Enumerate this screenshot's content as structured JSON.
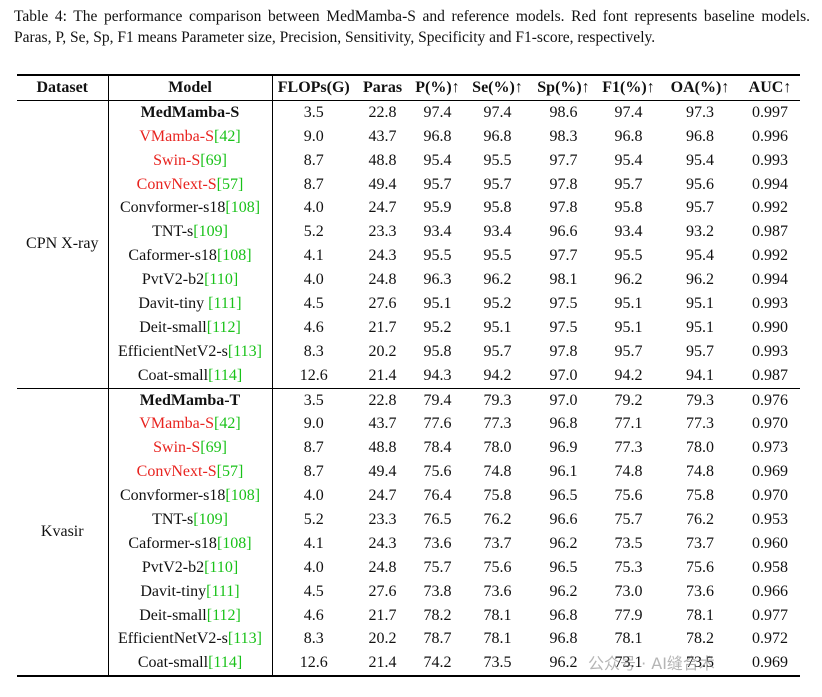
{
  "caption": "Table 4: The performance comparison between MedMamba-S and reference models. Red font represents baseline models. Paras, P, Se, Sp, F1 means Parameter size, Precision, Sensitivity, Specificity and F1-score, respectively.",
  "table": {
    "columns": [
      "Dataset",
      "Model",
      "FLOPs(G)",
      "Paras",
      "P(%)↑",
      "Se(%)↑",
      "Sp(%)↑",
      "F1(%)↑",
      "OA(%)↑",
      "AUC↑"
    ],
    "groups": [
      {
        "dataset": "CPN X-ray",
        "rows": [
          {
            "model": "MedMamba-S",
            "bold": true,
            "values": [
              "3.5",
              "22.8",
              "97.4",
              "97.4",
              "98.6",
              "97.4",
              "97.3",
              "0.997"
            ]
          },
          {
            "model": "VMamba-S",
            "ref": "[42]",
            "baseline": true,
            "values": [
              "9.0",
              "43.7",
              "96.8",
              "96.8",
              "98.3",
              "96.8",
              "96.8",
              "0.996"
            ]
          },
          {
            "model": "Swin-S",
            "ref": "[69]",
            "baseline": true,
            "values": [
              "8.7",
              "48.8",
              "95.4",
              "95.5",
              "97.7",
              "95.4",
              "95.4",
              "0.993"
            ]
          },
          {
            "model": "ConvNext-S",
            "ref": "[57]",
            "baseline": true,
            "values": [
              "8.7",
              "49.4",
              "95.7",
              "95.7",
              "97.8",
              "95.7",
              "95.6",
              "0.994"
            ]
          },
          {
            "model": "Convformer-s18",
            "ref": "[108]",
            "values": [
              "4.0",
              "24.7",
              "95.9",
              "95.8",
              "97.8",
              "95.8",
              "95.7",
              "0.992"
            ]
          },
          {
            "model": "TNT-s",
            "ref": "[109]",
            "values": [
              "5.2",
              "23.3",
              "93.4",
              "93.4",
              "96.6",
              "93.4",
              "93.2",
              "0.987"
            ]
          },
          {
            "model": "Caformer-s18",
            "ref": "[108]",
            "values": [
              "4.1",
              "24.3",
              "95.5",
              "95.5",
              "97.7",
              "95.5",
              "95.4",
              "0.992"
            ]
          },
          {
            "model": "PvtV2-b2",
            "ref": "[110]",
            "values": [
              "4.0",
              "24.8",
              "96.3",
              "96.2",
              "98.1",
              "96.2",
              "96.2",
              "0.994"
            ]
          },
          {
            "model": "Davit-tiny ",
            "ref": "[111]",
            "values": [
              "4.5",
              "27.6",
              "95.1",
              "95.2",
              "97.5",
              "95.1",
              "95.1",
              "0.993"
            ]
          },
          {
            "model": "Deit-small",
            "ref": "[112]",
            "values": [
              "4.6",
              "21.7",
              "95.2",
              "95.1",
              "97.5",
              "95.1",
              "95.1",
              "0.990"
            ]
          },
          {
            "model": "EfficientNetV2-s",
            "ref": "[113]",
            "values": [
              "8.3",
              "20.2",
              "95.8",
              "95.7",
              "97.8",
              "95.7",
              "95.7",
              "0.993"
            ]
          },
          {
            "model": "Coat-small",
            "ref": "[114]",
            "values": [
              "12.6",
              "21.4",
              "94.3",
              "94.2",
              "97.0",
              "94.2",
              "94.1",
              "0.987"
            ]
          }
        ]
      },
      {
        "dataset": "Kvasir",
        "rows": [
          {
            "model": "MedMamba-T",
            "bold": true,
            "values": [
              "3.5",
              "22.8",
              "79.4",
              "79.3",
              "97.0",
              "79.2",
              "79.3",
              "0.976"
            ]
          },
          {
            "model": "VMamba-S",
            "ref": "[42]",
            "baseline": true,
            "values": [
              "9.0",
              "43.7",
              "77.6",
              "77.3",
              "96.8",
              "77.1",
              "77.3",
              "0.970"
            ]
          },
          {
            "model": "Swin-S",
            "ref": "[69]",
            "baseline": true,
            "values": [
              "8.7",
              "48.8",
              "78.4",
              "78.0",
              "96.9",
              "77.3",
              "78.0",
              "0.973"
            ]
          },
          {
            "model": "ConvNext-S",
            "ref": "[57]",
            "baseline": true,
            "values": [
              "8.7",
              "49.4",
              "75.6",
              "74.8",
              "96.1",
              "74.8",
              "74.8",
              "0.969"
            ]
          },
          {
            "model": "Convformer-s18",
            "ref": "[108]",
            "values": [
              "4.0",
              "24.7",
              "76.4",
              "75.8",
              "96.5",
              "75.6",
              "75.8",
              "0.970"
            ]
          },
          {
            "model": "TNT-s",
            "ref": "[109]",
            "values": [
              "5.2",
              "23.3",
              "76.5",
              "76.2",
              "96.6",
              "75.7",
              "76.2",
              "0.953"
            ]
          },
          {
            "model": "Caformer-s18",
            "ref": "[108]",
            "values": [
              "4.1",
              "24.3",
              "73.6",
              "73.7",
              "96.2",
              "73.5",
              "73.7",
              "0.960"
            ]
          },
          {
            "model": "PvtV2-b2",
            "ref": "[110]",
            "values": [
              "4.0",
              "24.8",
              "75.7",
              "75.6",
              "96.5",
              "75.3",
              "75.6",
              "0.958"
            ]
          },
          {
            "model": "Davit-tiny",
            "ref": "[111]",
            "values": [
              "4.5",
              "27.6",
              "73.8",
              "73.6",
              "96.2",
              "73.0",
              "73.6",
              "0.966"
            ]
          },
          {
            "model": "Deit-small",
            "ref": "[112]",
            "values": [
              "4.6",
              "21.7",
              "78.2",
              "78.1",
              "96.8",
              "77.9",
              "78.1",
              "0.977"
            ]
          },
          {
            "model": "EfficientNetV2-s",
            "ref": "[113]",
            "values": [
              "8.3",
              "20.2",
              "78.7",
              "78.1",
              "96.8",
              "78.1",
              "78.2",
              "0.972"
            ]
          },
          {
            "model": "Coat-small",
            "ref": "[114]",
            "values": [
              "12.6",
              "21.4",
              "74.2",
              "73.5",
              "96.2",
              "73.1",
              "73.5",
              "0.969"
            ]
          }
        ]
      }
    ]
  },
  "watermark": "公众号 · AI缝合术"
}
